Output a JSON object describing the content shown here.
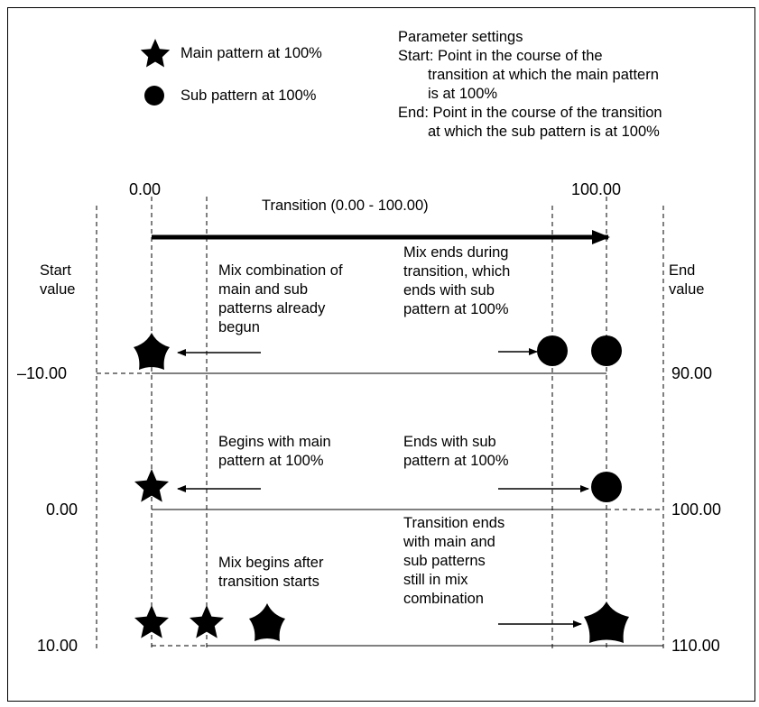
{
  "legend": {
    "main_label": "Main pattern at 100%",
    "sub_label": "Sub pattern at 100%",
    "main_icon": "star-icon",
    "sub_icon": "circle-icon"
  },
  "params": {
    "title": "Parameter settings",
    "start_line1": "Start: Point in the course of the",
    "start_line2": "transition at which the main pattern",
    "start_line3": "is at 100%",
    "end_line1": "End: Point in the course of the transition",
    "end_line2": "at which the sub pattern is at 100%"
  },
  "axis": {
    "top_left": "0.00",
    "top_right": "100.00",
    "transition_label": "Transition (0.00 - 100.00)",
    "start_value": "Start\nvalue",
    "end_value": "End\nvalue"
  },
  "rows": [
    {
      "start": "–10.00",
      "end": "90.00",
      "left_note": "Mix combination of\nmain and sub\npatterns already\nbegun",
      "right_note": "Mix ends during\ntransition, which\nends with sub\npattern at 100%"
    },
    {
      "start": "0.00",
      "end": "100.00",
      "left_note": "Begins with main\npattern at 100%",
      "right_note": "Ends with sub\npattern at 100%"
    },
    {
      "start": "10.00",
      "end": "110.00",
      "left_note": "Mix begins after\ntransition starts",
      "right_note": "Transition ends\nwith main and\nsub patterns\nstill in mix\ncombination"
    }
  ],
  "colors": {
    "ink": "#000000",
    "background": "#ffffff"
  }
}
